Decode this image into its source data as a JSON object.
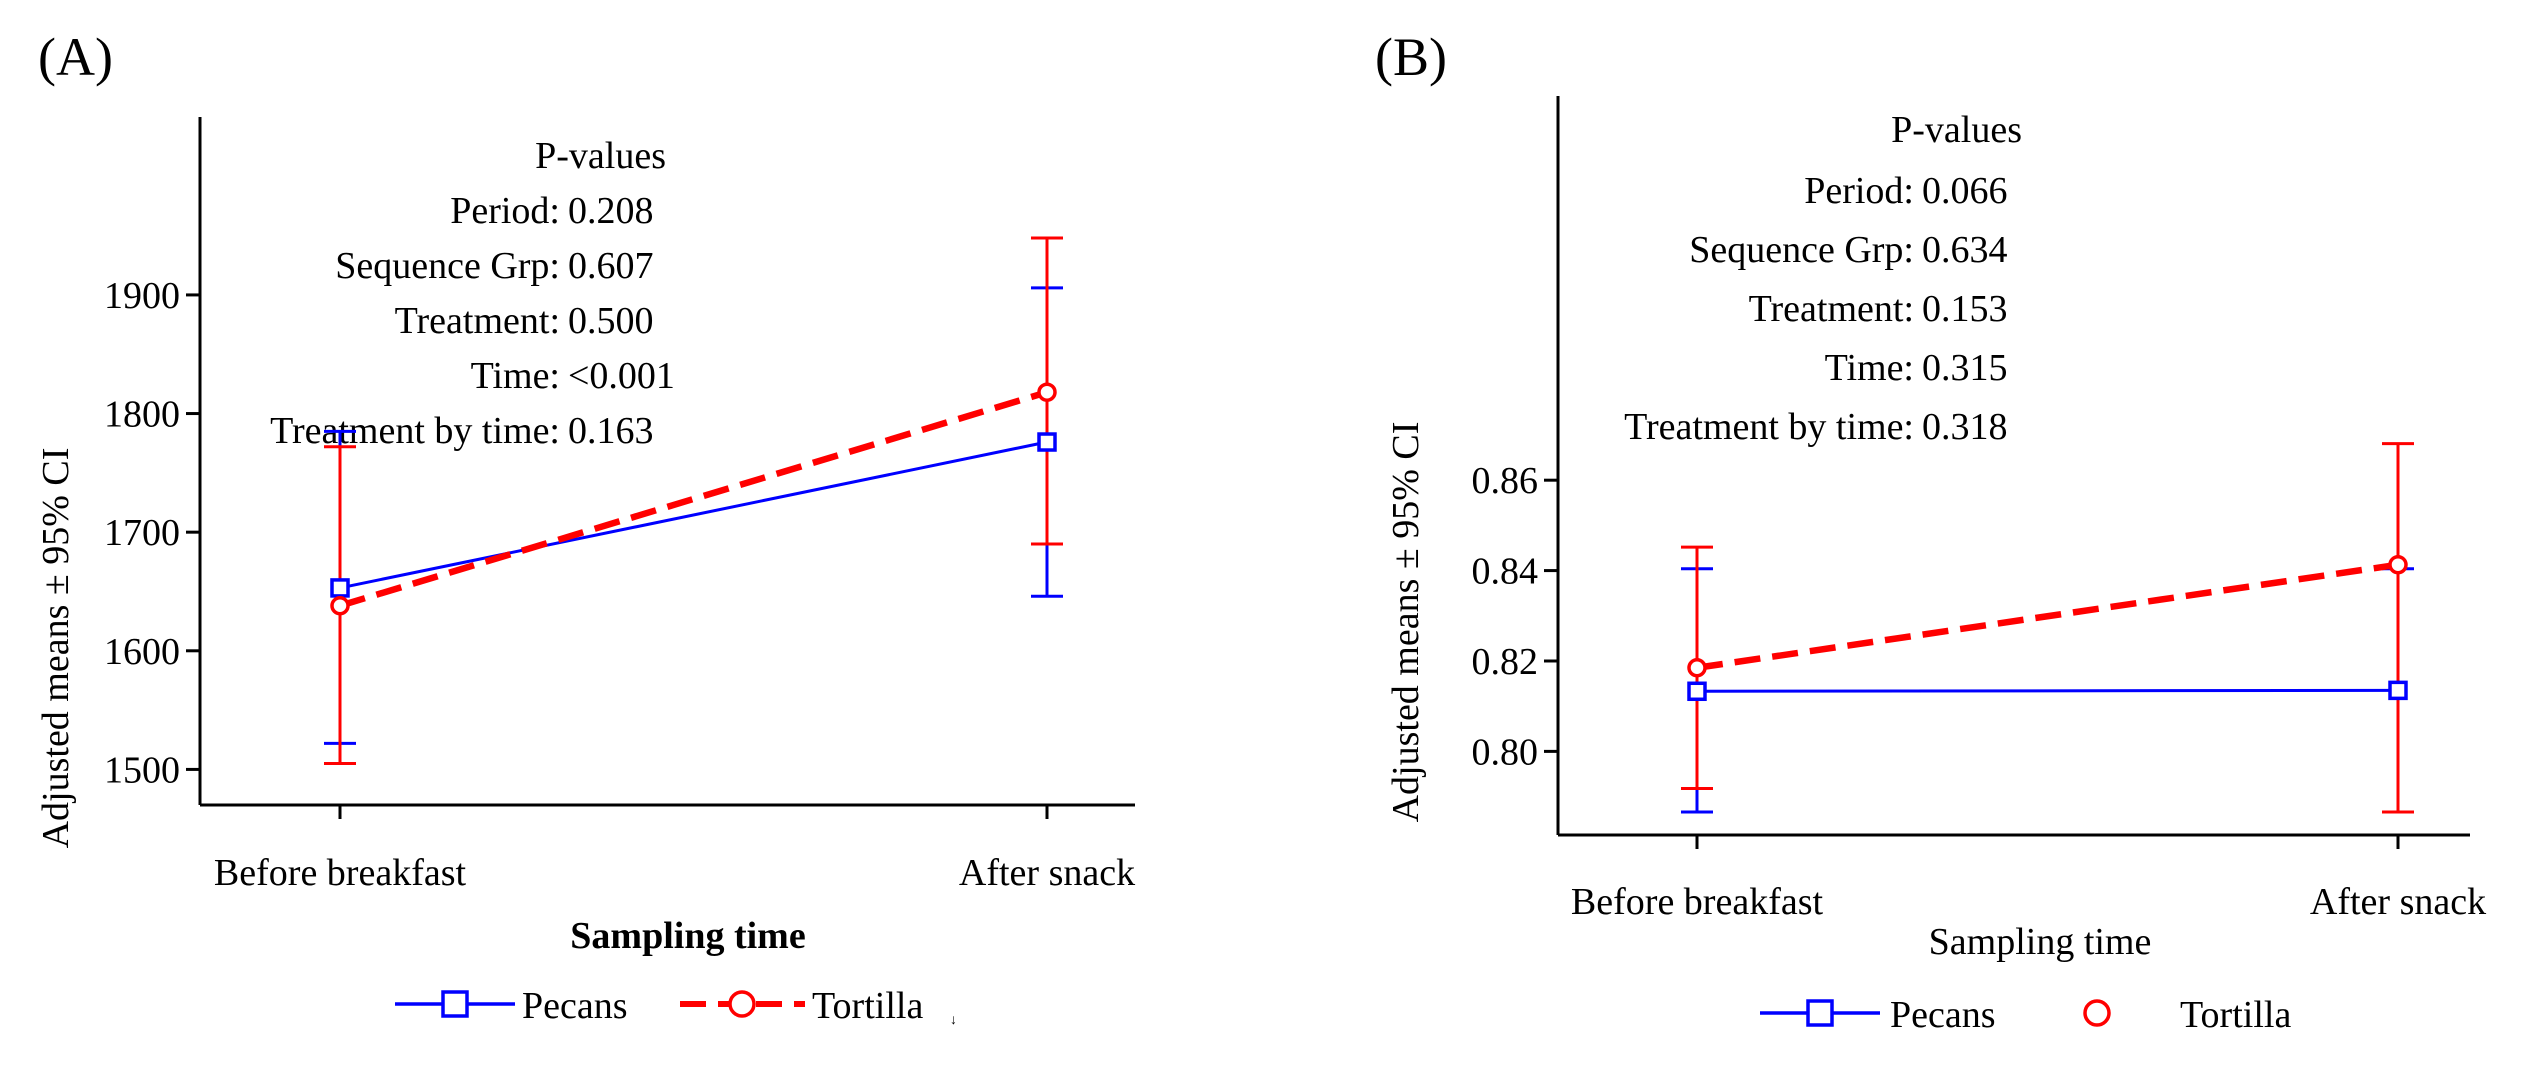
{
  "chart_data": [
    {
      "panel_label": "(A)",
      "type": "line",
      "xlabel": "Sampling time",
      "ylabel": "Adjusted means ± 95% CI",
      "categories": [
        "Before breakfast",
        "After snack"
      ],
      "ylim": [
        1470,
        2050
      ],
      "yticks": [
        1500,
        1600,
        1700,
        1800,
        1900
      ],
      "series": [
        {
          "name": "Pecans",
          "color": "#0000ff",
          "marker": "square",
          "dash": "solid",
          "values": [
            1653,
            1776
          ],
          "ci_low": [
            1522,
            1646
          ],
          "ci_high": [
            1785,
            1906
          ]
        },
        {
          "name": "Tortilla",
          "color": "#ff0000",
          "marker": "circle",
          "dash": "dashed",
          "values": [
            1638,
            1818
          ],
          "ci_low": [
            1505,
            1690
          ],
          "ci_high": [
            1772,
            1948
          ]
        }
      ],
      "legend": {
        "items": [
          "Pecans",
          "Tortilla"
        ],
        "extra_mark": "↓"
      },
      "pvalues": {
        "title": "P-values",
        "rows": [
          {
            "label": "Period:",
            "value": "0.208"
          },
          {
            "label": "Sequence Grp:",
            "value": "0.607"
          },
          {
            "label": "Treatment:",
            "value": "0.500"
          },
          {
            "label": "Time:",
            "value": "<0.001"
          },
          {
            "label": "Treatment by time:",
            "value": "0.163"
          }
        ]
      }
    },
    {
      "panel_label": "(B)",
      "type": "line",
      "xlabel": "Sampling time",
      "ylabel": "Adjusted means ± 95% CI",
      "categories": [
        "Before breakfast",
        "After snack"
      ],
      "ylim": [
        0.7815,
        0.945
      ],
      "yticks": [
        "0.80",
        "0.82",
        "0.84",
        "0.86"
      ],
      "series": [
        {
          "name": "Pecans",
          "color": "#0000ff",
          "marker": "square",
          "dash": "solid",
          "values": [
            0.8133,
            0.8135
          ],
          "ci_low": [
            0.7866,
            0.7866
          ],
          "ci_high": [
            0.8404,
            0.8404
          ]
        },
        {
          "name": "Tortilla",
          "color": "#ff0000",
          "marker": "circle",
          "dash": "dashed",
          "values": [
            0.8185,
            0.8413
          ],
          "ci_low": [
            0.7918,
            0.7866
          ],
          "ci_high": [
            0.8452,
            0.8681
          ]
        }
      ],
      "legend": {
        "items": [
          "Pecans",
          "Tortilla"
        ]
      },
      "pvalues": {
        "title": "P-values",
        "rows": [
          {
            "label": "Period:",
            "value": "0.066"
          },
          {
            "label": "Sequence Grp:",
            "value": "0.634"
          },
          {
            "label": "Treatment:",
            "value": "0.153"
          },
          {
            "label": "Time:",
            "value": "0.315"
          },
          {
            "label": "Treatment by time:",
            "value": "0.318"
          }
        ]
      }
    }
  ]
}
